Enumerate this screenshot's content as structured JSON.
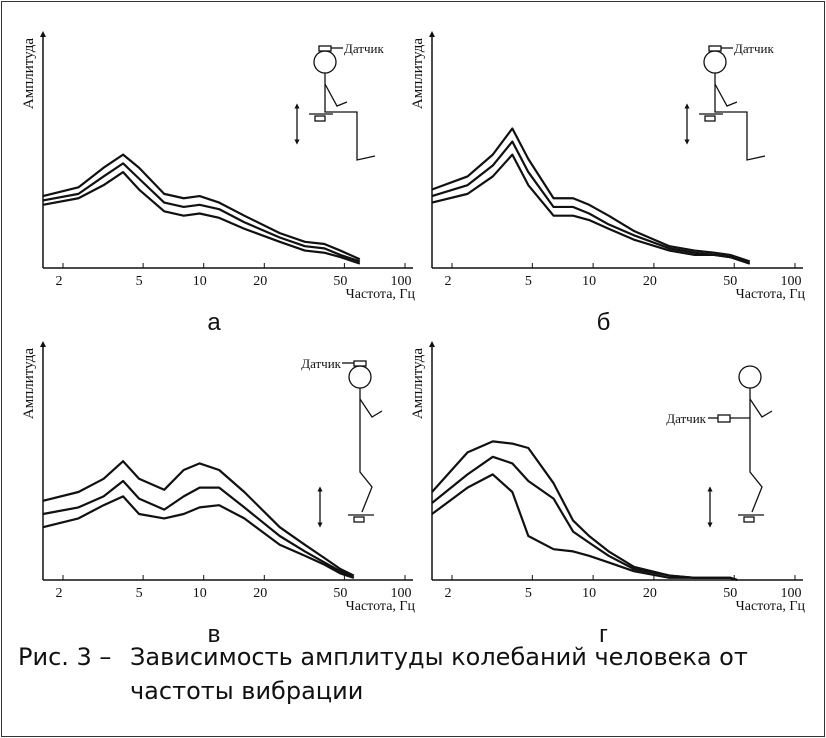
{
  "caption_label": "Рис. 3 –",
  "caption": "Зависимость амплитуды колебаний человека от частоты вибрации",
  "chart_data": [
    {
      "type": "line",
      "panel_label": "а",
      "sensor_label": "Датчик",
      "x_label": "Частота, Гц",
      "y_label": "Амплитуда",
      "xscale": "log",
      "xlim": [
        2,
        100
      ],
      "xticks": [
        2,
        5,
        10,
        20,
        50,
        100
      ],
      "ylim": [
        0,
        100
      ],
      "x": [
        2,
        3,
        4,
        5,
        6,
        8,
        10,
        12,
        15,
        20,
        30,
        40,
        50,
        60,
        75
      ],
      "series": [
        {
          "color": "#111111",
          "values": [
            33,
            37,
            46,
            52,
            46,
            34,
            32,
            33,
            30,
            24,
            16,
            12,
            11,
            8,
            4
          ]
        },
        {
          "color": "#111111",
          "values": [
            31,
            34,
            42,
            48,
            41,
            30,
            28,
            29,
            27,
            21,
            14,
            10,
            9,
            6,
            3
          ]
        },
        {
          "color": "#111111",
          "values": [
            29,
            32,
            38,
            44,
            36,
            26,
            24,
            25,
            23,
            18,
            12,
            8,
            7,
            5,
            2
          ]
        }
      ]
    },
    {
      "type": "line",
      "panel_label": "б",
      "sensor_label": "Датчик",
      "x_label": "Частота, Гц",
      "y_label": "Амплитуда",
      "xscale": "log",
      "xlim": [
        2,
        100
      ],
      "xticks": [
        2,
        5,
        10,
        20,
        50,
        100
      ],
      "ylim": [
        0,
        100
      ],
      "x": [
        2,
        3,
        4,
        5,
        6,
        8,
        10,
        12,
        15,
        20,
        30,
        40,
        50,
        60,
        75
      ],
      "series": [
        {
          "color": "#111111",
          "values": [
            36,
            42,
            52,
            64,
            50,
            32,
            32,
            29,
            24,
            17,
            10,
            8,
            7,
            6,
            3
          ]
        },
        {
          "color": "#111111",
          "values": [
            33,
            38,
            47,
            58,
            44,
            28,
            28,
            25,
            20,
            15,
            9,
            7,
            6,
            5,
            2
          ]
        },
        {
          "color": "#111111",
          "values": [
            30,
            34,
            42,
            52,
            38,
            24,
            24,
            22,
            18,
            13,
            8,
            6,
            6,
            5,
            2
          ]
        }
      ]
    },
    {
      "type": "line",
      "panel_label": "в",
      "sensor_label": "Датчик",
      "x_label": "Частота, Гц",
      "y_label": "Амплитуда",
      "xscale": "log",
      "xlim": [
        2,
        100
      ],
      "xticks": [
        2,
        5,
        10,
        20,
        50,
        100
      ],
      "ylim": [
        0,
        100
      ],
      "x": [
        2,
        3,
        4,
        5,
        6,
        8,
        10,
        12,
        15,
        20,
        30,
        40,
        50,
        60,
        70
      ],
      "series": [
        {
          "color": "#111111",
          "values": [
            36,
            40,
            46,
            54,
            46,
            41,
            50,
            53,
            50,
            40,
            24,
            16,
            10,
            5,
            2
          ]
        },
        {
          "color": "#111111",
          "values": [
            30,
            33,
            38,
            45,
            37,
            32,
            38,
            42,
            42,
            33,
            20,
            13,
            8,
            4,
            1
          ]
        },
        {
          "color": "#111111",
          "values": [
            24,
            28,
            34,
            38,
            30,
            28,
            30,
            33,
            34,
            28,
            16,
            11,
            7,
            3,
            1
          ]
        }
      ]
    },
    {
      "type": "line",
      "panel_label": "г",
      "sensor_label": "Датчик",
      "x_label": "Частота, Гц",
      "y_label": "Амплитуда",
      "xscale": "log",
      "xlim": [
        2,
        100
      ],
      "xticks": [
        2,
        5,
        10,
        20,
        50,
        100
      ],
      "ylim": [
        0,
        100
      ],
      "x": [
        2,
        3,
        4,
        5,
        6,
        8,
        10,
        12,
        15,
        20,
        30,
        40,
        50,
        60,
        65
      ],
      "series": [
        {
          "color": "#111111",
          "values": [
            40,
            58,
            63,
            62,
            60,
            44,
            27,
            20,
            13,
            6,
            2,
            1,
            1,
            1,
            0
          ]
        },
        {
          "color": "#111111",
          "values": [
            35,
            48,
            56,
            53,
            45,
            37,
            22,
            17,
            11,
            5,
            2,
            1,
            1,
            1,
            0
          ]
        },
        {
          "color": "#111111",
          "values": [
            30,
            42,
            48,
            40,
            20,
            14,
            13,
            11,
            8,
            4,
            1,
            1,
            1,
            1,
            0
          ]
        }
      ]
    }
  ]
}
